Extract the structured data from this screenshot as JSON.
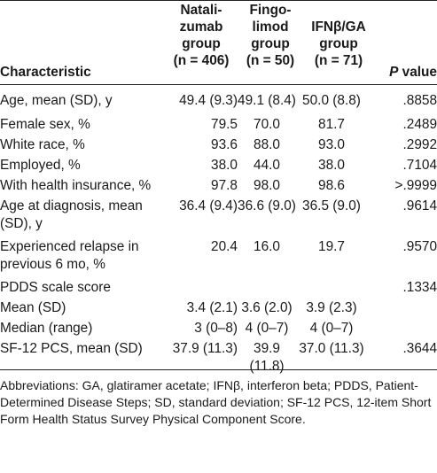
{
  "header": {
    "characteristic": "Characteristic",
    "natalizumab": [
      "Natali-",
      "zumab",
      "group",
      "(n = 406)"
    ],
    "fingolimod": [
      "Fingo-",
      "limod",
      "group",
      "(n = 50)"
    ],
    "ifn_ga": [
      "IFNβ/GA",
      "group",
      "(n = 71)"
    ],
    "p_value_italic": "P",
    "p_value_rest": " value"
  },
  "rows": [
    {
      "label": "Age, mean (SD), y",
      "n": "49.4 (9.3)",
      "f": "49.1 (8.4)",
      "i": "50.0 (8.8)",
      "p": ".8858"
    },
    {
      "label": "Female sex, %",
      "n": "79.5",
      "f": "70.0",
      "i": "81.7",
      "p": ".2489"
    },
    {
      "label": "White race, %",
      "n": "93.6",
      "f": "88.0",
      "i": "93.0",
      "p": ".2992"
    },
    {
      "label": "Employed, %",
      "n": "38.0",
      "f": "44.0",
      "i": "38.0",
      "p": ".7104"
    },
    {
      "label": "With health insurance, %",
      "n": "97.8",
      "f": "98.0",
      "i": "98.6",
      "p": ">.9999"
    },
    {
      "label": "Age at diagnosis, mean (SD), y",
      "n": "36.4 (9.4)",
      "f": "36.6 (9.0)",
      "i": "36.5 (9.0)",
      "p": ".9614"
    },
    {
      "label": "Experienced relapse in previous 6 mo, %",
      "n": "20.4",
      "f": "16.0",
      "i": "19.7",
      "p": ".9570"
    },
    {
      "label": "PDDS scale score",
      "n": "",
      "f": "",
      "i": "",
      "p": ".1334"
    },
    {
      "label": "Mean (SD)",
      "n": "3.4 (2.1)",
      "f": "3.6 (2.0)",
      "i": "3.9 (2.3)",
      "p": ""
    },
    {
      "label": "Median (range)",
      "n": "3 (0–8)",
      "f": "4 (0–7)",
      "i": "4 (0–7)",
      "p": ""
    },
    {
      "label": "SF-12 PCS, mean (SD)",
      "n": "37.9 (11.3)",
      "f": "39.9 (11.8)",
      "i": "37.0 (11.3)",
      "p": ".3644"
    }
  ],
  "footnote": "Abbreviations: GA, glatiramer acetate; IFNβ, interferon beta; PDDS, Patient-Determined Disease Steps; SD, standard deviation; SF-12 PCS, 12-item Short Form Health Status Survey Physical Component Score."
}
